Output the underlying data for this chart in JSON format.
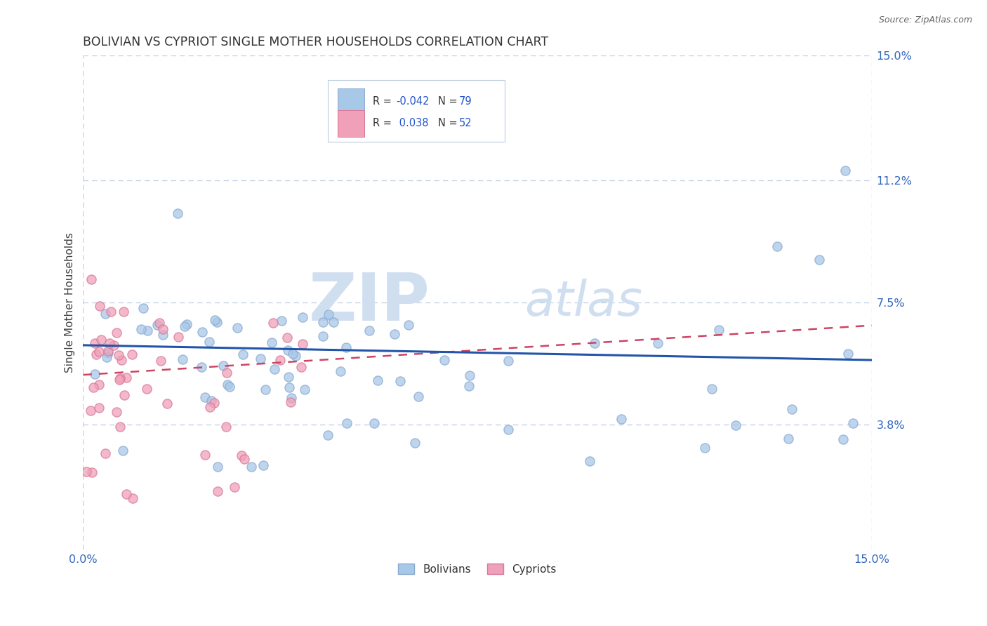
{
  "title": "BOLIVIAN VS CYPRIOT SINGLE MOTHER HOUSEHOLDS CORRELATION CHART",
  "source_text": "Source: ZipAtlas.com",
  "ylabel": "Single Mother Households",
  "xlim": [
    0.0,
    15.0
  ],
  "ylim": [
    0.0,
    15.0
  ],
  "ytick_values": [
    3.8,
    7.5,
    11.2,
    15.0
  ],
  "xtick_values": [
    0.0,
    15.0
  ],
  "bolivian_R": -0.042,
  "bolivian_N": 79,
  "cypriot_R": 0.038,
  "cypriot_N": 52,
  "bolivian_color": "#a8c8e8",
  "cypriot_color": "#f0a0b8",
  "bolivian_edge_color": "#88aad0",
  "cypriot_edge_color": "#d87898",
  "bolivian_trend_color": "#2255aa",
  "cypriot_trend_color": "#cc4466",
  "grid_color": "#c0cfe0",
  "background_color": "#ffffff",
  "watermark_zip": "ZIP",
  "watermark_atlas": "atlas",
  "watermark_color": "#d0dff0",
  "legend_r_color": "#2255cc",
  "legend_n_color": "#2255cc",
  "title_color": "#333333",
  "tick_color": "#3366bb",
  "ylabel_color": "#444444",
  "bol_trend_start_y": 6.2,
  "bol_trend_end_y": 5.75,
  "cyp_trend_start_y": 5.3,
  "cyp_trend_end_y": 6.8
}
